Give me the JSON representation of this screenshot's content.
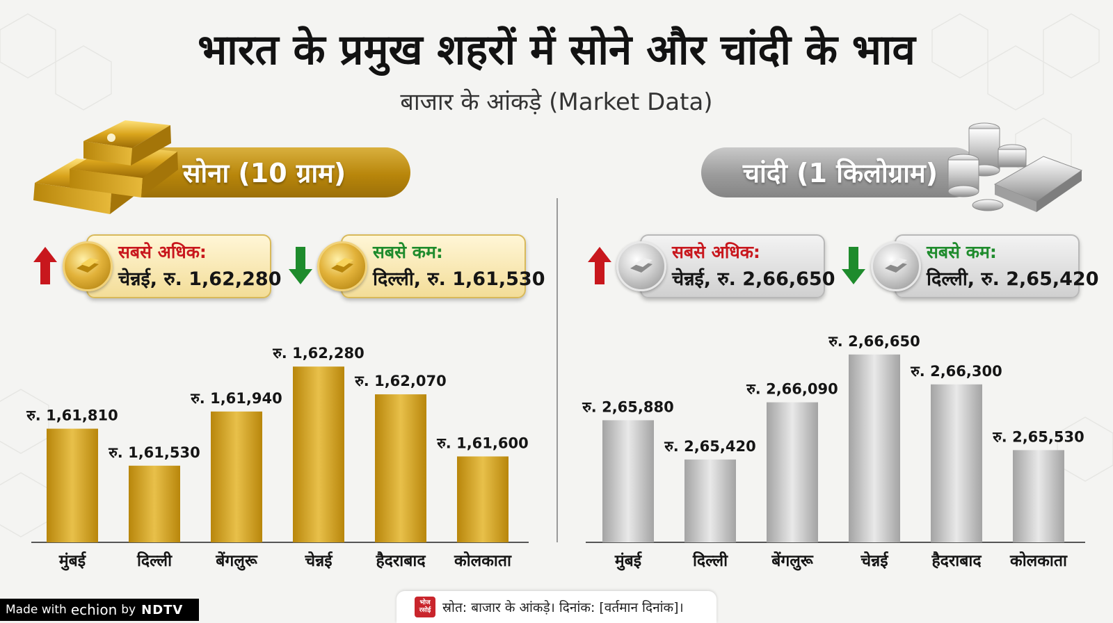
{
  "header": {
    "title": "भारत के प्रमुख शहरों में सोने और चांदी के भाव",
    "subtitle": "बाजार के आंकड़े (Market Data)"
  },
  "gold": {
    "label": "सोना (10 ग्राम)",
    "highest": {
      "label": "सबसे अधिक:",
      "value": "चेन्नई, रु. 1,62,280"
    },
    "lowest": {
      "label": "सबसे कम:",
      "value": "दिल्ली, रु. 1,61,530"
    }
  },
  "silver": {
    "label": "चांदी (1 किलोग्राम)",
    "highest": {
      "label": "सबसे अधिक:",
      "value": "चेन्नई, रु. 2,66,650"
    },
    "lowest": {
      "label": "सबसे कम:",
      "value": "दिल्ली, रु. 2,65,420"
    }
  },
  "chart_data": [
    {
      "type": "bar",
      "name": "gold",
      "title": "सोना (10 ग्राम)",
      "categories": [
        "मुंबई",
        "दिल्ली",
        "बेंगलुरू",
        "चेन्नई",
        "हैदराबाद",
        "कोलकाता"
      ],
      "values": [
        161810,
        161530,
        161940,
        162280,
        162070,
        161600
      ],
      "value_labels": [
        "रु. 1,61,810",
        "रु. 1,61,530",
        "रु. 1,61,940",
        "रु. 1,62,280",
        "रु. 1,62,070",
        "रु. 1,61,600"
      ],
      "ylim": [
        160950,
        162360
      ],
      "color": "#c9a227"
    },
    {
      "type": "bar",
      "name": "silver",
      "title": "चांदी (1 किलोग्राम)",
      "categories": [
        "मुंबई",
        "दिल्ली",
        "बेंगलुरू",
        "चेन्नई",
        "हैदराबाद",
        "कोलकाता"
      ],
      "values": [
        265880,
        265420,
        266090,
        266650,
        266300,
        265530
      ],
      "value_labels": [
        "रु. 2,65,880",
        "रु. 2,65,420",
        "रु. 2,66,090",
        "रु. 2,66,650",
        "रु. 2,66,300",
        "रु. 2,65,530"
      ],
      "ylim": [
        264450,
        266730
      ],
      "color": "#b5b5b5"
    }
  ],
  "footer": {
    "logo_text": "भोज रसोई",
    "source": "स्रोत: बाजार के आंकड़े। दिनांक: [वर्तमान दिनांक]।"
  },
  "watermark": {
    "made_with": "Made with",
    "echion": "echion",
    "by": "by",
    "ndtv": "NDTV"
  }
}
